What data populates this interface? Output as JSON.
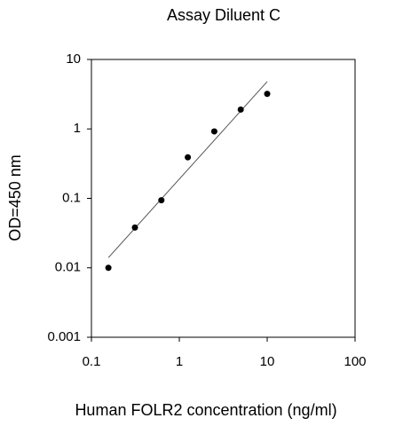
{
  "chart_data": {
    "type": "scatter",
    "title": "Assay Diluent C",
    "x_label": "Human FOLR2 concentration (ng/ml)",
    "y_label": "OD=450 nm",
    "log_x": true,
    "log_y": true,
    "x": [
      0.156,
      0.3125,
      0.625,
      1.25,
      2.5,
      5,
      10
    ],
    "values": [
      0.01,
      0.038,
      0.094,
      0.39,
      0.92,
      1.9,
      3.2
    ],
    "color": "#000000",
    "fit": {
      "x": [
        0.156,
        10
      ],
      "values": [
        0.014,
        4.8
      ],
      "color": "#555555"
    },
    "xlim": [
      0.1,
      100
    ],
    "xticks": [
      0.1,
      1,
      10,
      100
    ],
    "ylim": [
      0.001,
      10
    ],
    "yticks": [
      0.001,
      0.01,
      0.1,
      1,
      10
    ]
  }
}
